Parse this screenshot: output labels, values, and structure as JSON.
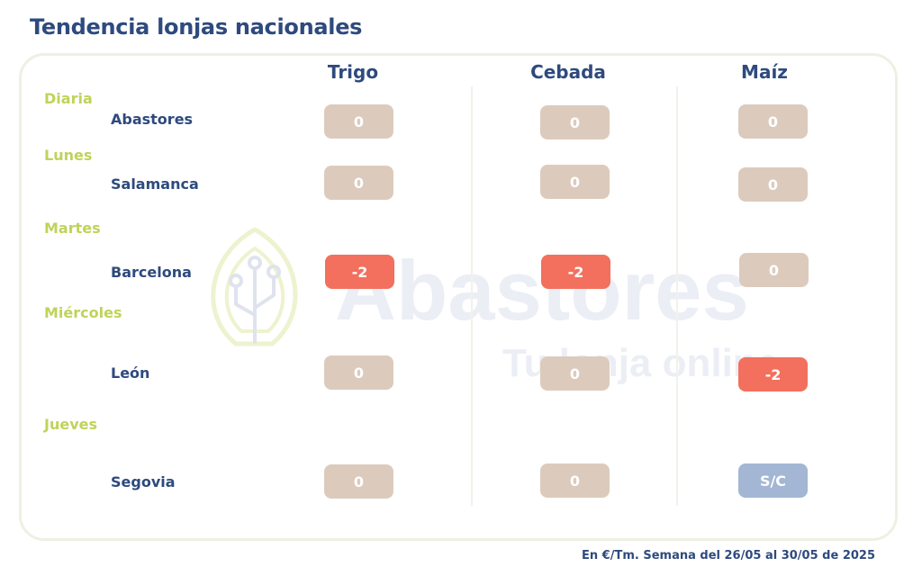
{
  "title": "Tendencia lonjas nacionales",
  "columns": [
    "Trigo",
    "Cebada",
    "Maíz"
  ],
  "days": [
    "Diaria",
    "Lunes",
    "Martes",
    "Miércoles",
    "Jueves"
  ],
  "rows": [
    {
      "city": "Abastores",
      "values": [
        "0",
        "0",
        "0"
      ]
    },
    {
      "city": "Salamanca",
      "values": [
        "0",
        "0",
        "0"
      ]
    },
    {
      "city": "Barcelona",
      "values": [
        "-2",
        "-2",
        "0"
      ]
    },
    {
      "city": "León",
      "values": [
        "0",
        "0",
        "-2"
      ]
    },
    {
      "city": "Segovia",
      "values": [
        "0",
        "0",
        "S/C"
      ]
    }
  ],
  "watermark": {
    "brand": "Abastores",
    "tagline": "Tu lonja online"
  },
  "footer": "En €/Tm. Semana del 26/05 al 30/05 de 2025",
  "colors": {
    "title": "#2e4a7e",
    "day": "#bfd35a",
    "neutral": "#dccbbd",
    "negative": "#f2705d",
    "no_quote": "#a3b6d3"
  }
}
